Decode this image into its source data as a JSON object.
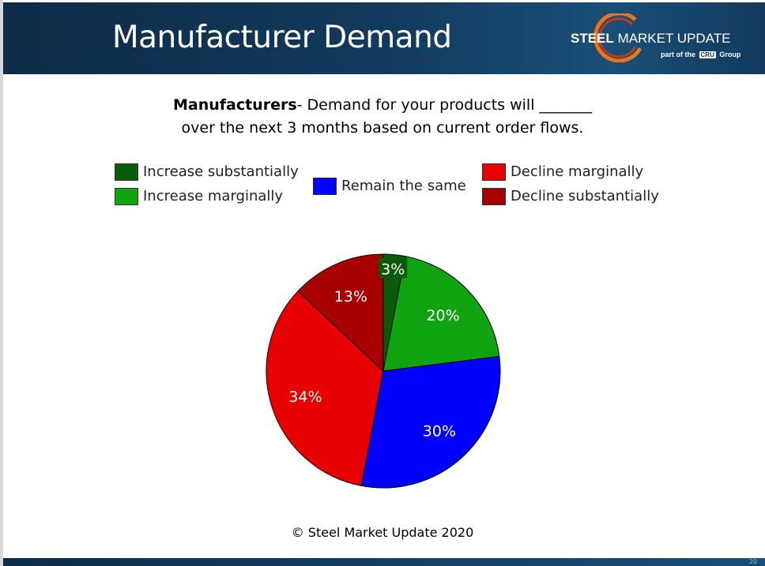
{
  "header": {
    "title": "Manufacturer Demand",
    "logo": {
      "brand_bold": "STEEL",
      "brand_rest": "MARKET UPDATE",
      "sub_prefix": "part of the",
      "sub_box": "CRU",
      "sub_suffix": "Group"
    }
  },
  "question": {
    "bold": "Manufacturers",
    "line1_rest": "- Demand for your products will _______",
    "line2": "over the next 3 months based on current order flows."
  },
  "chart_data": {
    "type": "pie",
    "categories": [
      "Increase substantially",
      "Increase marginally",
      "Remain the same",
      "Decline marginally",
      "Decline substantially"
    ],
    "values": [
      3,
      20,
      30,
      34,
      13
    ],
    "labels": [
      "3%",
      "20%",
      "30%",
      "34%",
      "13%"
    ],
    "colors": [
      "#0a5c0a",
      "#10a510",
      "#0000ff",
      "#e60000",
      "#a80000"
    ],
    "legend": "top",
    "title": ""
  },
  "footer": {
    "copyright": "© Steel Market Update 2020",
    "slide_number": "20"
  }
}
